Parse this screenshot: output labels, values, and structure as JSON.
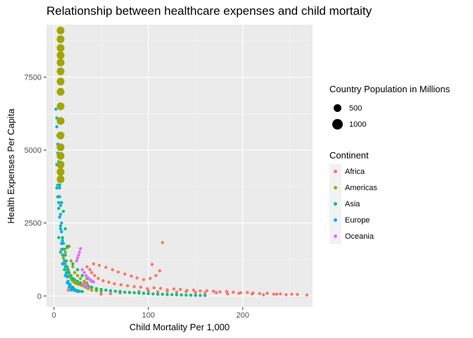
{
  "chart_data": {
    "type": "scatter",
    "title": "Relationship between healthcare expenses and child mortaity",
    "xlabel": "Child Mortality Per 1,000",
    "ylabel": "Health Expenses Per Capita",
    "xlim": [
      -8,
      274
    ],
    "ylim": [
      -380,
      9300
    ],
    "xticks": [
      0,
      100,
      200
    ],
    "yticks": [
      0,
      2500,
      5000,
      7500
    ],
    "grid": true,
    "legend_position": "right",
    "size_legend": {
      "title": "Country Population in Millions",
      "entries": [
        {
          "label": "500",
          "value": 500
        },
        {
          "label": "1000",
          "value": 1000
        }
      ]
    },
    "color_legend": {
      "title": "Continent",
      "entries": [
        {
          "label": "Africa",
          "color": "#F8766D"
        },
        {
          "label": "Americas",
          "color": "#A3A500"
        },
        {
          "label": "Asia",
          "color": "#00BF7D"
        },
        {
          "label": "Europe",
          "color": "#00B0F6"
        },
        {
          "label": "Oceania",
          "color": "#E76BF3"
        }
      ]
    },
    "series": [
      {
        "name": "Africa",
        "color": "#F8766D",
        "points": [
          [
            268,
            30
          ],
          [
            258,
            50
          ],
          [
            252,
            60
          ],
          [
            246,
            40
          ],
          [
            240,
            70
          ],
          [
            233,
            60
          ],
          [
            226,
            90
          ],
          [
            218,
            80
          ],
          [
            211,
            100
          ],
          [
            205,
            120
          ],
          [
            198,
            110
          ],
          [
            190,
            130
          ],
          [
            183,
            150
          ],
          [
            176,
            140
          ],
          [
            169,
            160
          ],
          [
            162,
            180
          ],
          [
            155,
            170
          ],
          [
            148,
            200
          ],
          [
            141,
            190
          ],
          [
            134,
            220
          ],
          [
            127,
            240
          ],
          [
            120,
            210
          ],
          [
            113,
            260
          ],
          [
            106,
            280
          ],
          [
            99,
            250
          ],
          [
            92,
            300
          ],
          [
            85,
            320
          ],
          [
            78,
            350
          ],
          [
            71,
            380
          ],
          [
            64,
            420
          ],
          [
            58,
            470
          ],
          [
            52,
            520
          ],
          [
            47,
            600
          ],
          [
            43,
            700
          ],
          [
            40,
            800
          ],
          [
            38,
            900
          ],
          [
            35,
            1000
          ],
          [
            42,
            1100
          ],
          [
            48,
            1050
          ],
          [
            55,
            980
          ],
          [
            62,
            900
          ],
          [
            68,
            820
          ],
          [
            75,
            750
          ],
          [
            82,
            680
          ],
          [
            88,
            620
          ],
          [
            95,
            560
          ],
          [
            102,
            600
          ],
          [
            108,
            700
          ],
          [
            112,
            860
          ],
          [
            104,
            1080
          ],
          [
            115,
            1830
          ],
          [
            236,
            60
          ],
          [
            222,
            40
          ],
          [
            210,
            70
          ],
          [
            196,
            90
          ],
          [
            184,
            70
          ],
          [
            172,
            110
          ],
          [
            160,
            100
          ],
          [
            150,
            120
          ],
          [
            140,
            150
          ],
          [
            130,
            130
          ],
          [
            120,
            160
          ],
          [
            110,
            140
          ],
          [
            100,
            170
          ],
          [
            90,
            150
          ],
          [
            80,
            120
          ],
          [
            70,
            100
          ],
          [
            60,
            80
          ],
          [
            50,
            60
          ],
          [
            45,
            200
          ],
          [
            38,
            300
          ],
          [
            30,
            400
          ],
          [
            25,
            500
          ],
          [
            20,
            300
          ],
          [
            15,
            200
          ]
        ]
      },
      {
        "name": "Americas",
        "color": "#A3A500",
        "points": [
          [
            8,
            1600
          ],
          [
            9,
            1400
          ],
          [
            10,
            1300
          ],
          [
            11,
            1200
          ],
          [
            12,
            1100
          ],
          [
            13,
            1000
          ],
          [
            14,
            900
          ],
          [
            15,
            800
          ],
          [
            16,
            700
          ],
          [
            17,
            650
          ],
          [
            18,
            600
          ],
          [
            19,
            550
          ],
          [
            20,
            500
          ],
          [
            22,
            450
          ],
          [
            24,
            420
          ],
          [
            26,
            400
          ],
          [
            28,
            380
          ],
          [
            30,
            350
          ],
          [
            33,
            300
          ],
          [
            36,
            250
          ],
          [
            40,
            200
          ],
          [
            45,
            180
          ],
          [
            50,
            150
          ],
          [
            12,
            1500
          ],
          [
            14,
            1650
          ],
          [
            16,
            1700
          ],
          [
            18,
            1200
          ],
          [
            20,
            1000
          ],
          [
            22,
            800
          ],
          [
            25,
            700
          ],
          [
            28,
            600
          ],
          [
            32,
            500
          ],
          [
            35,
            450
          ]
        ]
      },
      {
        "name": "Asia",
        "color": "#00BF7D",
        "points": [
          [
            3,
            3700
          ],
          [
            4,
            3400
          ],
          [
            5,
            3000
          ],
          [
            6,
            2700
          ],
          [
            7,
            2400
          ],
          [
            8,
            2200
          ],
          [
            9,
            2000
          ],
          [
            10,
            1800
          ],
          [
            11,
            1600
          ],
          [
            12,
            1400
          ],
          [
            13,
            1200
          ],
          [
            14,
            1000
          ],
          [
            15,
            900
          ],
          [
            16,
            800
          ],
          [
            18,
            700
          ],
          [
            20,
            600
          ],
          [
            22,
            550
          ],
          [
            25,
            500
          ],
          [
            28,
            450
          ],
          [
            32,
            400
          ],
          [
            36,
            350
          ],
          [
            40,
            300
          ],
          [
            45,
            250
          ],
          [
            50,
            220
          ],
          [
            55,
            200
          ],
          [
            60,
            180
          ],
          [
            65,
            160
          ],
          [
            70,
            150
          ],
          [
            75,
            130
          ],
          [
            80,
            120
          ],
          [
            85,
            110
          ],
          [
            90,
            100
          ],
          [
            95,
            90
          ],
          [
            100,
            80
          ],
          [
            105,
            70
          ],
          [
            110,
            60
          ],
          [
            115,
            55
          ],
          [
            120,
            50
          ],
          [
            125,
            45
          ],
          [
            130,
            40
          ],
          [
            135,
            35
          ],
          [
            140,
            30
          ],
          [
            145,
            25
          ],
          [
            150,
            20
          ],
          [
            155,
            20
          ],
          [
            160,
            15
          ],
          [
            5,
            2000
          ],
          [
            7,
            1500
          ],
          [
            9,
            1100
          ],
          [
            11,
            900
          ],
          [
            13,
            700
          ],
          [
            15,
            500
          ],
          [
            17,
            400
          ],
          [
            19,
            300
          ],
          [
            21,
            250
          ],
          [
            23,
            200
          ],
          [
            25,
            180
          ],
          [
            27,
            160
          ],
          [
            30,
            150
          ],
          [
            10,
            2900
          ],
          [
            12,
            2300
          ],
          [
            8,
            3200
          ],
          [
            6,
            3800
          ],
          [
            14,
            1700
          ],
          [
            20,
            1100
          ],
          [
            25,
            900
          ],
          [
            30,
            700
          ],
          [
            35,
            600
          ],
          [
            40,
            500
          ]
        ]
      },
      {
        "name": "Europe",
        "color": "#00B0F6",
        "points": [
          [
            2,
            6400
          ],
          [
            3,
            6100
          ],
          [
            3,
            5800
          ],
          [
            4,
            5500
          ],
          [
            4,
            5200
          ],
          [
            4,
            4900
          ],
          [
            5,
            4600
          ],
          [
            5,
            4300
          ],
          [
            5,
            4000
          ],
          [
            6,
            3700
          ],
          [
            6,
            3400
          ],
          [
            7,
            3100
          ],
          [
            7,
            2800
          ],
          [
            8,
            2500
          ],
          [
            8,
            2200
          ],
          [
            9,
            1900
          ],
          [
            9,
            1600
          ],
          [
            10,
            1400
          ],
          [
            11,
            1200
          ],
          [
            12,
            1000
          ],
          [
            13,
            800
          ],
          [
            14,
            650
          ],
          [
            15,
            500
          ],
          [
            16,
            400
          ],
          [
            17,
            330
          ],
          [
            18,
            270
          ],
          [
            20,
            220
          ],
          [
            22,
            180
          ],
          [
            25,
            150
          ],
          [
            3,
            4500
          ],
          [
            4,
            3800
          ],
          [
            5,
            3200
          ],
          [
            6,
            2700
          ],
          [
            7,
            2300
          ],
          [
            8,
            1800
          ],
          [
            10,
            1100
          ],
          [
            12,
            700
          ],
          [
            14,
            450
          ],
          [
            16,
            300
          ],
          [
            18,
            200
          ]
        ]
      },
      {
        "name": "Oceania",
        "color": "#E76BF3",
        "points": [
          [
            28,
            1620
          ],
          [
            27,
            1500
          ],
          [
            26,
            1400
          ],
          [
            25,
            1300
          ],
          [
            24,
            1200
          ],
          [
            30,
            900
          ],
          [
            32,
            800
          ],
          [
            34,
            700
          ],
          [
            36,
            620
          ],
          [
            38,
            560
          ],
          [
            40,
            520
          ],
          [
            42,
            480
          ],
          [
            31,
            400
          ],
          [
            33,
            350
          ],
          [
            35,
            300
          ]
        ]
      },
      {
        "name": "",
        "color": "#A3A500",
        "size": "large",
        "points": [
          [
            7,
            9100
          ],
          [
            7,
            8800
          ],
          [
            7,
            8500
          ],
          [
            7,
            8250
          ],
          [
            7,
            8000
          ],
          [
            7,
            7700
          ],
          [
            7,
            7350
          ],
          [
            7,
            7000
          ],
          [
            7,
            6500
          ],
          [
            7,
            6000
          ],
          [
            7,
            5500
          ],
          [
            7,
            5100
          ],
          [
            7,
            4800
          ],
          [
            7,
            4500
          ],
          [
            7,
            4250
          ],
          [
            7,
            4000
          ]
        ]
      }
    ]
  }
}
